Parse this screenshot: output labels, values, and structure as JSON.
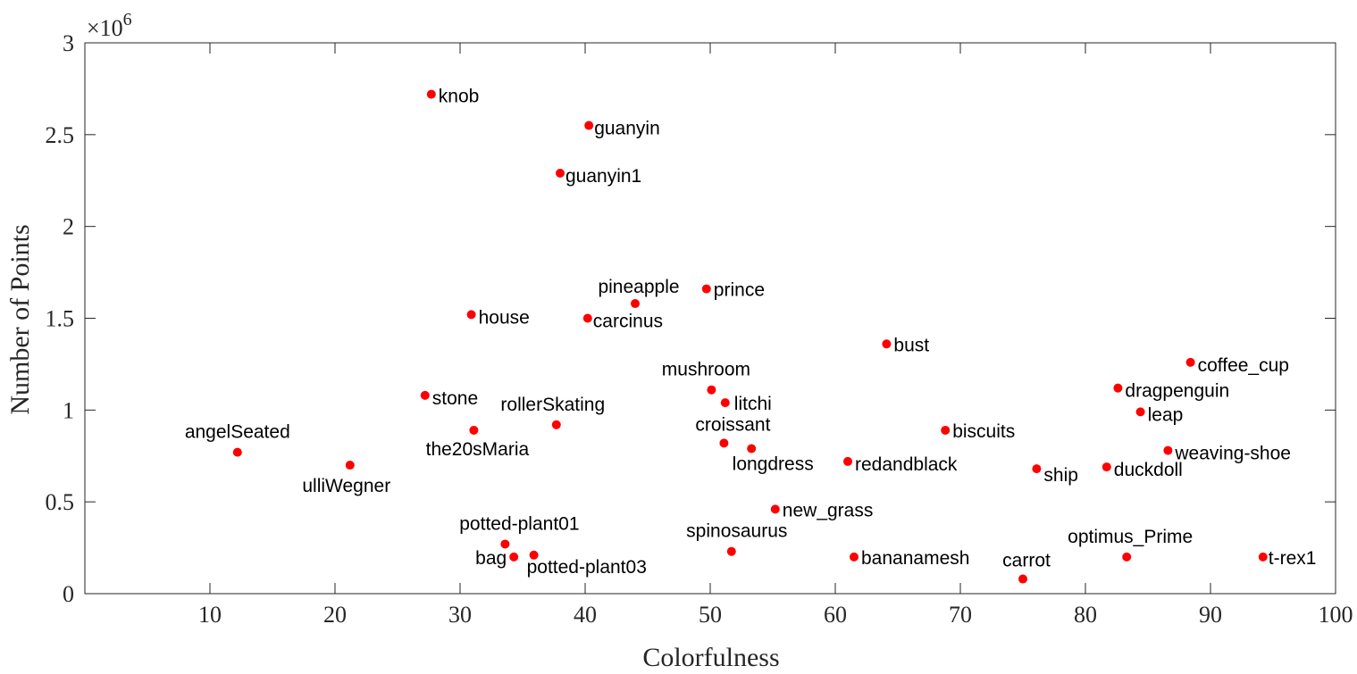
{
  "chart_data": {
    "type": "scatter",
    "xlabel": "Colorfulness",
    "ylabel": "Number of Points",
    "xlim": [
      0,
      100
    ],
    "ylim": [
      0,
      3000000
    ],
    "x_ticks": [
      10,
      20,
      30,
      40,
      50,
      60,
      70,
      80,
      90,
      100
    ],
    "y_ticks": [
      0,
      0.5,
      1,
      1.5,
      2,
      2.5,
      3
    ],
    "y_tick_labels": [
      "0",
      "0.5",
      "1",
      "1.5",
      "2",
      "2.5",
      "3"
    ],
    "y_multiplier": {
      "base": "×10",
      "exponent": "6"
    },
    "grid": false,
    "marker_color": "#ff0000",
    "points": [
      {
        "label": "knob",
        "x": 27.7,
        "y": 2720000
      },
      {
        "label": "guanyin",
        "x": 40.3,
        "y": 2550000
      },
      {
        "label": "guanyin1",
        "x": 38.0,
        "y": 2290000
      },
      {
        "label": "pineapple",
        "x": 44.0,
        "y": 1580000
      },
      {
        "label": "prince",
        "x": 49.7,
        "y": 1660000
      },
      {
        "label": "house",
        "x": 30.9,
        "y": 1520000
      },
      {
        "label": "carcinus",
        "x": 40.2,
        "y": 1500000
      },
      {
        "label": "bust",
        "x": 64.1,
        "y": 1360000
      },
      {
        "label": "coffee_cup",
        "x": 88.4,
        "y": 1260000
      },
      {
        "label": "mushroom",
        "x": 50.1,
        "y": 1110000
      },
      {
        "label": "dragpenguin",
        "x": 82.6,
        "y": 1120000
      },
      {
        "label": "stone",
        "x": 27.2,
        "y": 1080000
      },
      {
        "label": "litchi",
        "x": 51.2,
        "y": 1040000
      },
      {
        "label": "leap",
        "x": 84.4,
        "y": 990000
      },
      {
        "label": "rollerSkating",
        "x": 37.7,
        "y": 920000
      },
      {
        "label": "the20sMaria",
        "x": 31.1,
        "y": 890000
      },
      {
        "label": "biscuits",
        "x": 68.8,
        "y": 890000
      },
      {
        "label": "croissant",
        "x": 51.1,
        "y": 820000
      },
      {
        "label": "longdress",
        "x": 53.3,
        "y": 790000
      },
      {
        "label": "weaving-shoe",
        "x": 86.6,
        "y": 780000
      },
      {
        "label": "angelSeated",
        "x": 12.2,
        "y": 770000
      },
      {
        "label": "redandblack",
        "x": 61.0,
        "y": 720000
      },
      {
        "label": "ulliWegner",
        "x": 21.2,
        "y": 700000
      },
      {
        "label": "duckdoll",
        "x": 81.7,
        "y": 690000
      },
      {
        "label": "ship",
        "x": 76.1,
        "y": 680000
      },
      {
        "label": "new_grass",
        "x": 55.2,
        "y": 460000
      },
      {
        "label": "potted-plant01",
        "x": 33.6,
        "y": 270000
      },
      {
        "label": "spinosaurus",
        "x": 51.7,
        "y": 230000
      },
      {
        "label": "potted-plant03",
        "x": 35.9,
        "y": 210000
      },
      {
        "label": "bag",
        "x": 34.3,
        "y": 200000
      },
      {
        "label": "bananamesh",
        "x": 61.5,
        "y": 200000
      },
      {
        "label": "optimus_Prime",
        "x": 83.3,
        "y": 200000
      },
      {
        "label": "t-rex1",
        "x": 94.2,
        "y": 200000
      },
      {
        "label": "carrot",
        "x": 75.0,
        "y": 80000
      }
    ]
  }
}
